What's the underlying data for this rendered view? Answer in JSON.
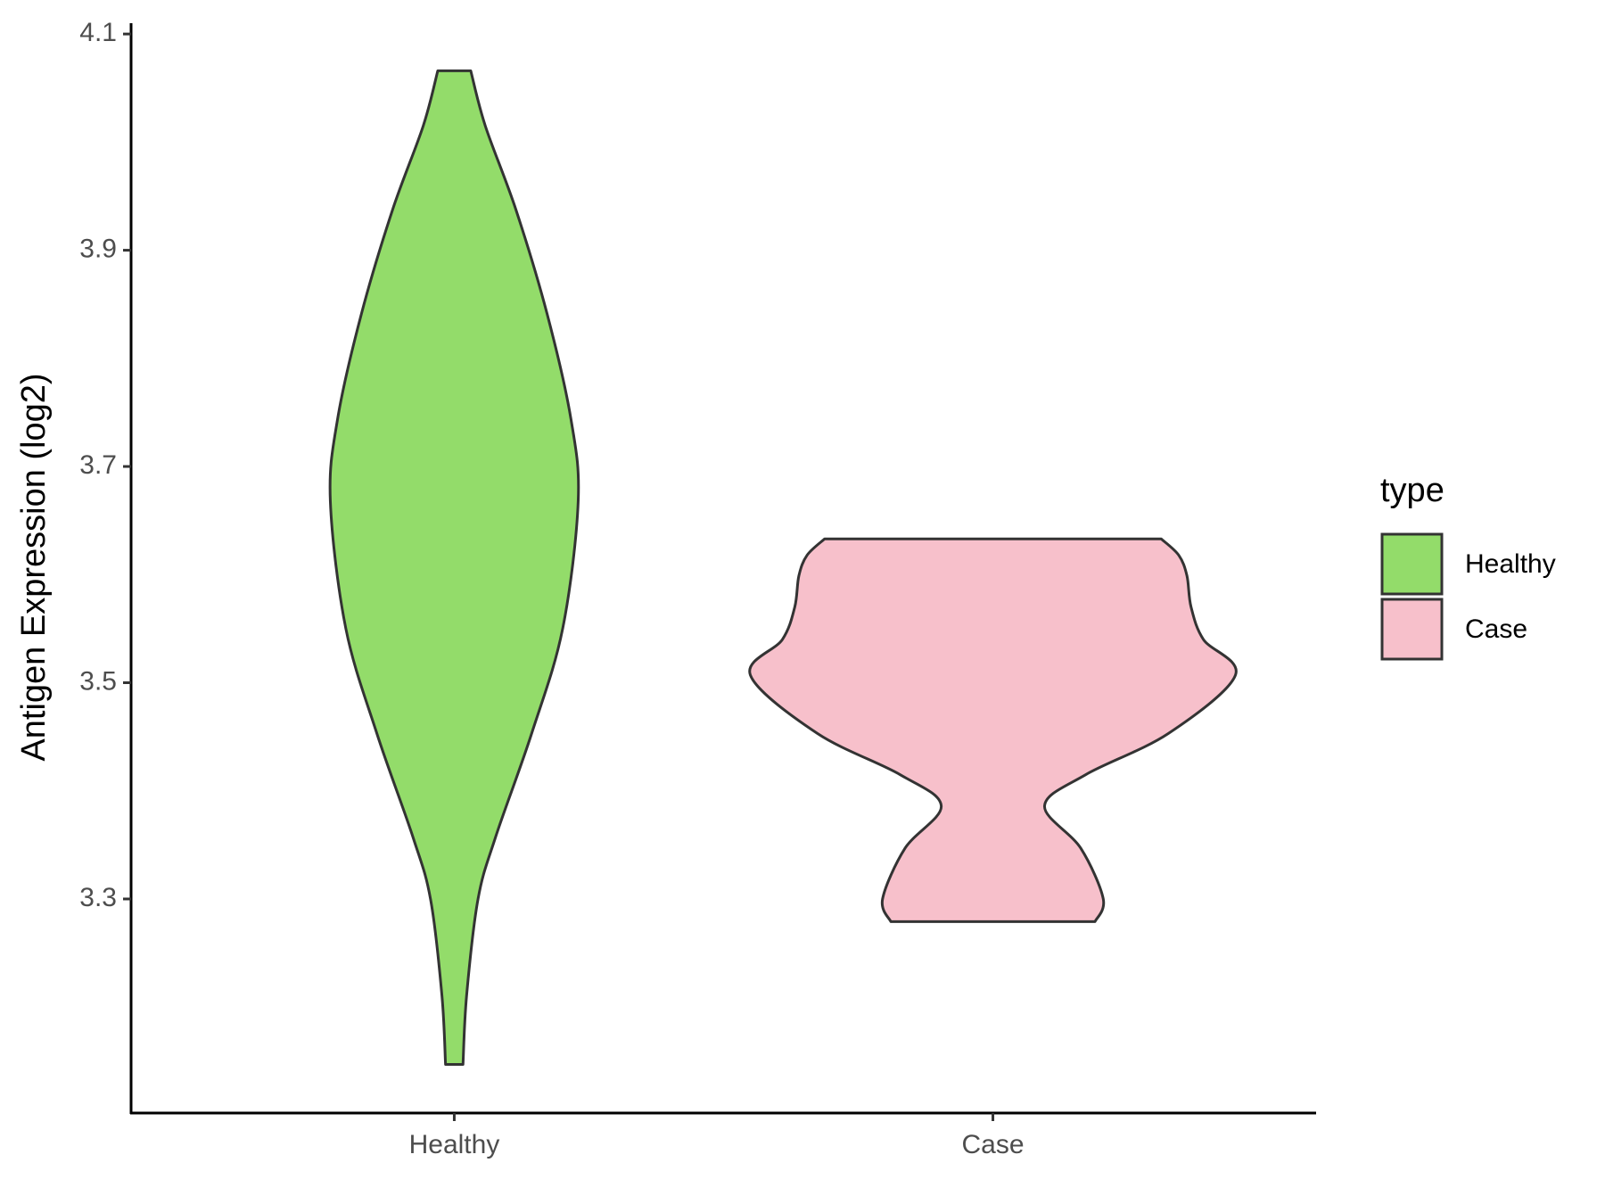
{
  "chart_data": {
    "type": "violin",
    "y_label": "Antigen Expression (log2)",
    "legend_title": "type",
    "categories": [
      "Healthy",
      "Case"
    ],
    "series": [
      {
        "name": "Healthy",
        "color": "#93DC6A",
        "y": [
          3.147,
          3.211,
          3.3,
          3.357,
          3.453,
          3.55,
          3.668,
          3.744,
          3.841,
          3.937,
          4.015,
          4.066
        ],
        "density": [
          0.036,
          0.051,
          0.098,
          0.17,
          0.319,
          0.447,
          0.511,
          0.481,
          0.383,
          0.255,
          0.128,
          0.068
        ]
      },
      {
        "name": "Case",
        "color": "#F7C0CB",
        "y": [
          3.279,
          3.3,
          3.347,
          3.386,
          3.415,
          3.453,
          3.507,
          3.54,
          3.57,
          3.599,
          3.618,
          3.633
        ],
        "density": [
          0.421,
          0.455,
          0.362,
          0.213,
          0.383,
          0.723,
          1.0,
          0.868,
          0.817,
          0.8,
          0.766,
          0.694
        ]
      }
    ],
    "ylim": [
      3.102,
      4.11
    ],
    "yticks": [
      3.3,
      3.5,
      3.7,
      3.9,
      4.1
    ],
    "legend": "right"
  }
}
